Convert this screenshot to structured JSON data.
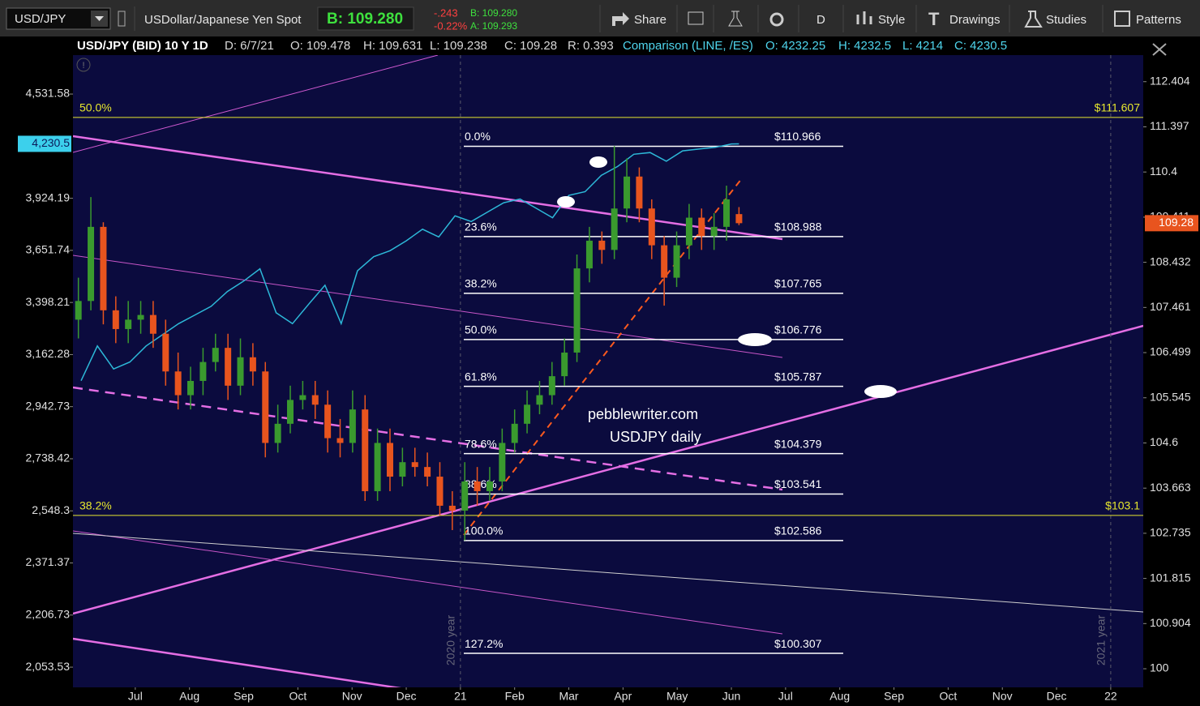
{
  "toolbar": {
    "symbol": "USD/JPY",
    "description": "USDollar/Japanese Yen Spot",
    "bid_big": "B: 109.280",
    "change": "-.243",
    "change_pct": "-0.22%",
    "bid": "B: 109.280",
    "ask": "A: 109.293",
    "buttons": [
      "Share",
      "D",
      "Style",
      "Drawings",
      "Studies",
      "Patterns"
    ]
  },
  "info_bar": {
    "main": [
      "USD/JPY (BID) 10 Y 1D",
      "D: 6/7/21",
      "O: 109.478",
      "H: 109.631",
      "L: 109.238",
      "C: 109.28",
      "R: 0.393"
    ],
    "comparison": [
      "Comparison (LINE, /ES)",
      "O: 4232.25",
      "H: 4232.5",
      "L: 4214",
      "C: 4230.5"
    ]
  },
  "chart_data": {
    "type": "candlestick",
    "up_color": "#3a9a2e",
    "down_color": "#e8541e",
    "x": [
      -0.05,
      0.18,
      0.41,
      0.64,
      0.87,
      1.1,
      1.33,
      1.56,
      1.79,
      2.02,
      2.25,
      2.48,
      2.71,
      2.94,
      3.17,
      3.4,
      3.63,
      3.86,
      4.09,
      4.32,
      4.55,
      4.78,
      5.01,
      5.24,
      5.47,
      5.7,
      5.93,
      6.16,
      6.39,
      6.62,
      6.85,
      7.08,
      7.31,
      7.54,
      7.77,
      8.0,
      8.23,
      8.46,
      8.69,
      8.92,
      9.15,
      9.38,
      9.61,
      9.84,
      10.07,
      10.3,
      10.53,
      10.76,
      10.99,
      11.22,
      11.45,
      11.68,
      11.91,
      12.14
    ],
    "open": [
      107.2,
      107.6,
      109.2,
      107.4,
      107.0,
      107.2,
      107.3,
      106.9,
      106.1,
      105.6,
      105.9,
      106.3,
      106.6,
      105.8,
      106.4,
      106.1,
      104.6,
      105.0,
      105.5,
      105.6,
      105.4,
      104.7,
      104.6,
      105.3,
      103.6,
      104.6,
      103.9,
      104.2,
      104.1,
      103.9,
      103.3,
      103.2,
      103.8,
      103.6,
      103.8,
      104.6,
      105.0,
      105.4,
      105.6,
      106.0,
      106.5,
      108.3,
      108.9,
      108.7,
      109.6,
      110.3,
      109.6,
      108.8,
      108.1,
      108.8,
      109.4,
      109.0,
      109.2,
      109.478
    ],
    "high": [
      108.1,
      109.85,
      109.3,
      107.7,
      107.6,
      107.6,
      107.6,
      107.2,
      106.5,
      106.2,
      106.6,
      106.9,
      106.9,
      106.8,
      106.7,
      106.3,
      105.4,
      105.8,
      105.9,
      105.9,
      105.7,
      105.1,
      105.7,
      105.6,
      104.9,
      104.9,
      104.5,
      104.5,
      104.4,
      104.2,
      103.6,
      104.2,
      104.1,
      104.1,
      104.9,
      105.3,
      105.7,
      105.9,
      106.3,
      106.8,
      108.6,
      109.2,
      109.1,
      110.97,
      110.7,
      110.5,
      109.8,
      109.0,
      109.1,
      109.7,
      109.6,
      109.5,
      110.1,
      109.631
    ],
    "low": [
      106.8,
      107.4,
      107.1,
      106.7,
      106.7,
      106.9,
      106.6,
      105.8,
      105.3,
      105.3,
      105.6,
      106.1,
      105.5,
      105.6,
      105.8,
      104.3,
      104.4,
      104.8,
      105.3,
      105.1,
      104.4,
      104.3,
      104.4,
      103.4,
      103.4,
      103.6,
      103.7,
      103.9,
      103.7,
      103.1,
      102.8,
      102.59,
      103.3,
      103.4,
      103.6,
      104.4,
      104.8,
      105.2,
      105.4,
      105.8,
      106.3,
      108.0,
      108.4,
      108.5,
      109.3,
      109.3,
      108.5,
      107.5,
      107.9,
      108.5,
      108.7,
      108.7,
      108.9,
      109.238
    ],
    "close": [
      107.6,
      109.2,
      107.4,
      107.0,
      107.2,
      107.3,
      106.9,
      106.1,
      105.6,
      105.9,
      106.3,
      106.6,
      105.8,
      106.4,
      106.1,
      104.6,
      105.0,
      105.5,
      105.6,
      105.4,
      104.7,
      104.6,
      105.3,
      103.6,
      104.6,
      103.9,
      104.2,
      104.1,
      103.9,
      103.3,
      103.2,
      103.8,
      103.6,
      103.8,
      104.6,
      105.0,
      105.4,
      105.6,
      106.0,
      106.5,
      108.3,
      108.9,
      108.7,
      109.6,
      110.3,
      109.6,
      108.8,
      108.1,
      108.8,
      109.4,
      109.0,
      109.2,
      109.8,
      109.28
    ],
    "comparison": {
      "color": "#2db8d8",
      "axis": "y2",
      "x": [
        0,
        0.3,
        0.6,
        0.9,
        1.2,
        1.5,
        1.8,
        2.1,
        2.4,
        2.7,
        3.0,
        3.3,
        3.6,
        3.9,
        4.2,
        4.5,
        4.8,
        5.1,
        5.4,
        5.7,
        6.0,
        6.3,
        6.6,
        6.9,
        7.2,
        7.5,
        7.8,
        8.1,
        8.4,
        8.7,
        9.0,
        9.3,
        9.6,
        9.9,
        10.2,
        10.5,
        10.8,
        11.1,
        11.4,
        11.7,
        12.0,
        12.14
      ],
      "values": [
        3050,
        3200,
        3100,
        3130,
        3200,
        3250,
        3300,
        3340,
        3380,
        3450,
        3500,
        3560,
        3350,
        3300,
        3390,
        3480,
        3300,
        3550,
        3620,
        3650,
        3700,
        3760,
        3720,
        3830,
        3800,
        3850,
        3900,
        3920,
        3870,
        3820,
        3940,
        3960,
        4050,
        4100,
        4170,
        4180,
        4130,
        4190,
        4200,
        4210,
        4230,
        4230.5
      ]
    },
    "xlim": [
      -0.15,
      19.6
    ],
    "xticks": [
      {
        "value": 1,
        "label": "Jul"
      },
      {
        "value": 2,
        "label": "Aug"
      },
      {
        "value": 3,
        "label": "Sep"
      },
      {
        "value": 4,
        "label": "Oct"
      },
      {
        "value": 5,
        "label": "Nov"
      },
      {
        "value": 6,
        "label": "Dec"
      },
      {
        "value": 7,
        "label": "21"
      },
      {
        "value": 8,
        "label": "Feb"
      },
      {
        "value": 9,
        "label": "Mar"
      },
      {
        "value": 10,
        "label": "Apr"
      },
      {
        "value": 11,
        "label": "May"
      },
      {
        "value": 12,
        "label": "Jun"
      },
      {
        "value": 13,
        "label": "Jul"
      },
      {
        "value": 14,
        "label": "Aug"
      },
      {
        "value": 15,
        "label": "Sep"
      },
      {
        "value": 16,
        "label": "Oct"
      },
      {
        "value": 17,
        "label": "Nov"
      },
      {
        "value": 18,
        "label": "Dec"
      },
      {
        "value": 19,
        "label": "22"
      }
    ],
    "ylim": [
      99.63,
      113.0
    ],
    "ylog": true,
    "yticks": [
      112.404,
      111.397,
      110.4,
      109.411,
      108.432,
      107.461,
      106.499,
      105.545,
      104.6,
      103.663,
      102.735,
      101.815,
      100.904,
      100
    ],
    "y2lim": [
      1997,
      4782
    ],
    "y2log": true,
    "y2ticks": [
      {
        "value": 4531.58,
        "label": "4,531.58"
      },
      {
        "value": 3924.19,
        "label": "3,924.19"
      },
      {
        "value": 3651.74,
        "label": "3,651.74"
      },
      {
        "value": 3398.21,
        "label": "3,398.21"
      },
      {
        "value": 3162.28,
        "label": "3,162.28"
      },
      {
        "value": 2942.73,
        "label": "2,942.73"
      },
      {
        "value": 2738.42,
        "label": "2,738.42"
      },
      {
        "value": 2548.3,
        "label": "2,548.3"
      },
      {
        "value": 2371.37,
        "label": "2,371.37"
      },
      {
        "value": 2206.73,
        "label": "2,206.73"
      },
      {
        "value": 2053.53,
        "label": "2,053.53"
      }
    ],
    "grid": false,
    "last_marker": {
      "value": 109.28,
      "color": "#e8541e"
    },
    "comparison_marker": {
      "value": 4230.5,
      "label": "4,230.5",
      "color": "#3cd0ec"
    },
    "fib_levels": {
      "values": [
        110.966,
        108.988,
        107.765,
        106.776,
        105.787,
        104.379,
        103.541,
        102.586,
        100.307
      ],
      "labels": [
        "0.0%",
        "23.6%",
        "38.2%",
        "50.0%",
        "61.8%",
        "78.6%",
        "88.6%",
        "100.0%",
        "127.2%"
      ],
      "value_labels": [
        "$110.966",
        "$108.988",
        "$107.765",
        "$106.776",
        "$105.787",
        "$104.379",
        "$103.541",
        "$102.586",
        "$100.307"
      ],
      "color": "#ffffff"
    },
    "horizontal_levels": {
      "values": [
        111.607,
        103.1
      ],
      "labels": [
        "50.0%",
        "38.2%"
      ],
      "value_labels": [
        "$111.607",
        "$103.1"
      ],
      "color": "#e6e62e"
    },
    "period_lines": {
      "x": [
        7,
        19
      ],
      "labels": [
        "2020 year",
        "2021 year"
      ]
    },
    "watermark": [
      "pebblewriter.com",
      "USDJPY daily"
    ]
  }
}
